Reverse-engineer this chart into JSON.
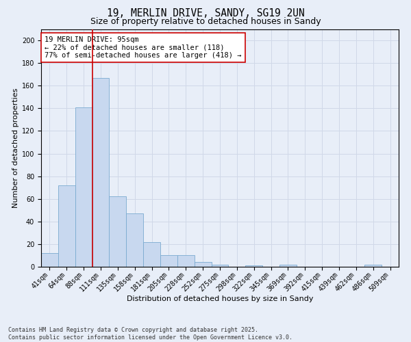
{
  "title1": "19, MERLIN DRIVE, SANDY, SG19 2UN",
  "title2": "Size of property relative to detached houses in Sandy",
  "xlabel": "Distribution of detached houses by size in Sandy",
  "ylabel": "Number of detached properties",
  "bar_labels": [
    "41sqm",
    "64sqm",
    "88sqm",
    "111sqm",
    "135sqm",
    "158sqm",
    "181sqm",
    "205sqm",
    "228sqm",
    "252sqm",
    "275sqm",
    "298sqm",
    "322sqm",
    "345sqm",
    "369sqm",
    "392sqm",
    "415sqm",
    "439sqm",
    "462sqm",
    "486sqm",
    "509sqm"
  ],
  "bar_values": [
    12,
    72,
    141,
    167,
    62,
    47,
    22,
    10,
    10,
    4,
    2,
    0,
    1,
    0,
    2,
    0,
    0,
    0,
    0,
    2,
    0
  ],
  "bar_color": "#c8d8ef",
  "bar_edge_color": "#7aaad0",
  "vline_x": 2.5,
  "vline_color": "#cc0000",
  "annotation_text": "19 MERLIN DRIVE: 95sqm\n← 22% of detached houses are smaller (118)\n77% of semi-detached houses are larger (418) →",
  "annotation_box_color": "#ffffff",
  "annotation_box_edge": "#cc0000",
  "ylim": [
    0,
    210
  ],
  "yticks": [
    0,
    20,
    40,
    60,
    80,
    100,
    120,
    140,
    160,
    180,
    200
  ],
  "grid_color": "#d0d8e8",
  "bg_color": "#e8eef8",
  "footer": "Contains HM Land Registry data © Crown copyright and database right 2025.\nContains public sector information licensed under the Open Government Licence v3.0.",
  "title_fontsize": 10.5,
  "subtitle_fontsize": 9,
  "axis_label_fontsize": 8,
  "tick_fontsize": 7,
  "annotation_fontsize": 7.5
}
